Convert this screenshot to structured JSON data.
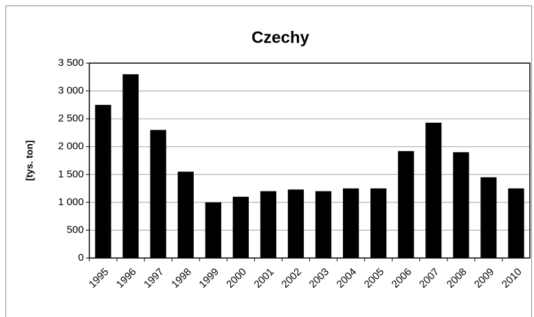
{
  "chart_data": {
    "type": "bar",
    "title": "Czechy",
    "y_label": "[tys. ton]",
    "categories": [
      "1995",
      "1996",
      "1997",
      "1998",
      "1999",
      "2000",
      "2001",
      "2002",
      "2003",
      "2004",
      "2005",
      "2006",
      "2007",
      "2008",
      "2009",
      "2010"
    ],
    "values": [
      2750,
      3300,
      2300,
      1550,
      1000,
      1100,
      1200,
      1230,
      1200,
      1250,
      1250,
      1920,
      2430,
      1900,
      1450,
      1250
    ],
    "color": "#000000",
    "ylim": [
      0,
      3500
    ],
    "yticks": [
      0,
      500,
      {
        "value": 1000,
        "label": "1 000"
      },
      {
        "value": 1500,
        "label": "1 500"
      },
      {
        "value": 2000,
        "label": "2 000"
      },
      {
        "value": 2500,
        "label": "2 500"
      },
      {
        "value": 3000,
        "label": "3 000"
      },
      {
        "value": 3500,
        "label": "3 500"
      }
    ],
    "grid": true
  }
}
